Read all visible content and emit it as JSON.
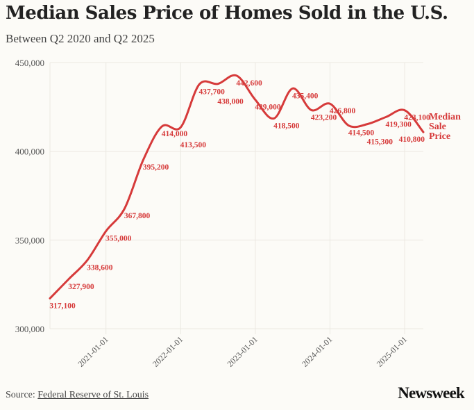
{
  "header": {
    "title": "Median Sales Price of Homes Sold in the U.S.",
    "subtitle": "Between Q2 2020 and Q2 2025"
  },
  "footer": {
    "source_prefix": "Source:",
    "source_link": "Federal Reserve of St. Louis",
    "logo": "Newsweek"
  },
  "colors": {
    "line": "#d63a3a",
    "grid": "#ebe8e2",
    "background": "#fcfbf7"
  },
  "chart_data": {
    "type": "line",
    "title": "Median Sales Price of Homes Sold in the U.S.",
    "subtitle": "Between Q2 2020 and Q2 2025",
    "xlabel": "",
    "ylabel": "",
    "ylim": [
      300000,
      450000
    ],
    "yticks": [
      300000,
      350000,
      400000,
      450000
    ],
    "ytick_labels": [
      "300,000",
      "350,000",
      "400,000",
      "450,000"
    ],
    "xtick_labels": [
      "2021-01-01",
      "2022-01-01",
      "2023-01-01",
      "2024-01-01",
      "2025-01-01"
    ],
    "xtick_index": [
      3,
      7,
      11,
      15,
      19
    ],
    "grid": true,
    "series": [
      {
        "name": "Median Sale Price",
        "label_lines": [
          "Median",
          "Sale",
          "Price"
        ],
        "x": [
          "2020-04-01",
          "2020-07-01",
          "2020-10-01",
          "2021-01-01",
          "2021-04-01",
          "2021-07-01",
          "2021-10-01",
          "2022-01-01",
          "2022-04-01",
          "2022-07-01",
          "2022-10-01",
          "2023-01-01",
          "2023-04-01",
          "2023-07-01",
          "2023-10-01",
          "2024-01-01",
          "2024-04-01",
          "2024-07-01",
          "2024-10-01",
          "2025-01-01",
          "2025-04-01"
        ],
        "values": [
          317100,
          327900,
          338600,
          355000,
          367800,
          395200,
          414000,
          413500,
          437700,
          438000,
          442600,
          429000,
          418500,
          435400,
          423200,
          426800,
          414500,
          415300,
          419300,
          423100,
          410800
        ],
        "labels": [
          "317,100",
          "327,900",
          "338,600",
          "355,000",
          "367,800",
          "395,200",
          "414,000",
          "413,500",
          "437,700",
          "438,000",
          "442,600",
          "429,000",
          "418,500",
          "435,400",
          "423,200",
          "426,800",
          "414,500",
          "415,300",
          "419,300",
          "423,100",
          "410,800"
        ]
      }
    ]
  }
}
